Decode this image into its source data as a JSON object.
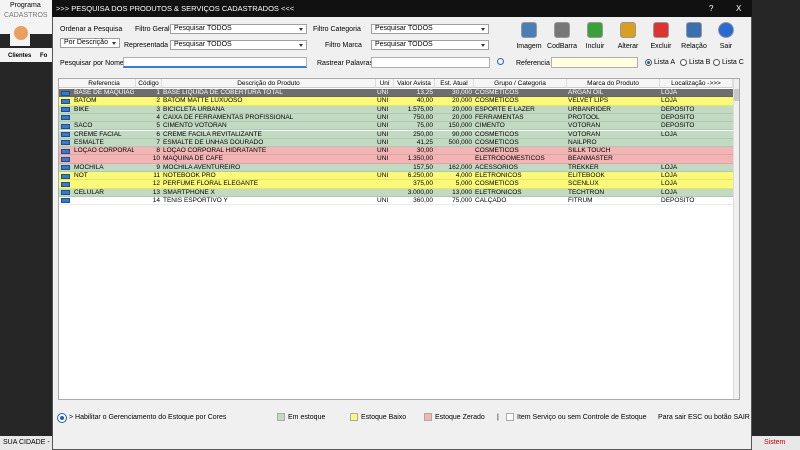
{
  "background": {
    "app_title": "Programa",
    "menu": "CADASTROS",
    "icons": [
      "Clientes",
      "Fo"
    ],
    "status": "SUA CIDADE -",
    "status_right": "Sistem"
  },
  "window": {
    "title": ">>>  PESQUISA DOS PRODUTOS & SERVIÇOS CADASTRADOS  <<<",
    "help": "?",
    "close": "X"
  },
  "filters": {
    "order_label": "Ordenar a Pesquisa",
    "order_value": "Por Descrição",
    "general_label": "Filtro Geral",
    "general_value": "Pesquisar TODOS",
    "rep_label": "Representada",
    "rep_value": "Pesquisar TODOS",
    "category_label": "Filtro Categoria",
    "category_value": "Pesquisar TODOS",
    "brand_label": "Filtro Marca",
    "brand_value": "Pesquisar TODOS"
  },
  "buttons": [
    "Imagem",
    "CodBarra",
    "Incluir",
    "Alterar",
    "Excluir",
    "Relação",
    "Sair"
  ],
  "search": {
    "name_label": "Pesquisar por Nome",
    "words_label": "Rastrear Palavras",
    "ref_label": "Referencia",
    "lists": [
      "Lista A",
      "Lista B",
      "Lista C"
    ]
  },
  "table": {
    "columns": [
      "Referencia",
      "Código",
      "Descrição do Produto",
      "Uni",
      "Valor Avista",
      "Est. Atual",
      "Grupo / Categoria",
      "Marca do Produto",
      "Localização ->>>"
    ],
    "rows": [
      {
        "cells": [
          "BASE DE MAQUIAGE",
          "1",
          "BASE LIQUIDA DE COBERTURA TOTAL",
          "UNI",
          "13,25",
          "30,000",
          "COSMETICOS",
          "ARGAN OIL",
          "LOJA"
        ],
        "color": "#6e6e6e",
        "selected": true
      },
      {
        "cells": [
          "BATOM",
          "2",
          "BATOM MATTE LUXUOSO",
          "UNI",
          "40,00",
          "20,000",
          "COSMETICOS",
          "VELVET LIPS",
          "LOJA"
        ],
        "color": "#fafa78"
      },
      {
        "cells": [
          "BIKE",
          "3",
          "BICICLETA URBANA",
          "UNI",
          "1.575,00",
          "20,000",
          "ESPORTE E LAZER",
          "URBANRIDER",
          "DEPOSITO"
        ],
        "color": "#c2dac2"
      },
      {
        "cells": [
          null,
          "4",
          "CAIXA DE FERRAMENTAS PROFISSIONAL",
          "UNI",
          "750,00",
          "20,000",
          "FERRAMENTAS",
          "PROTOOL",
          "DEPOSITO"
        ],
        "color": "#c2dac2"
      },
      {
        "cells": [
          "SACO",
          "5",
          "CIMENTO VOTORAN",
          "UNI",
          "75,00",
          "150,000",
          "CIMENTO",
          "VOTORAN",
          "DEPOSITO"
        ],
        "color": "#c2dac2"
      },
      {
        "cells": [
          "CREME FACIAL",
          "6",
          "CREME FACILA REVITALIZANTE",
          "UNI",
          "250,00",
          "90,000",
          "COSMETICOS",
          "VOTORAN",
          "LOJA"
        ],
        "color": "#c2dac2"
      },
      {
        "cells": [
          "ESMALTE",
          "7",
          "ESMALTE DE UNHAS DOURADO",
          "UNI",
          "41,25",
          "500,000",
          "COSMETICOS",
          "NAILPRO",
          null
        ],
        "color": "#c2dac2"
      },
      {
        "cells": [
          "LOÇÃO CORPORAL",
          "8",
          "LOÇÃO CORPORAL HIDRATANTE",
          "UNI",
          "30,00",
          null,
          "COSMETICOS",
          "SILLK TOUCH",
          null
        ],
        "color": "#f2b4b4"
      },
      {
        "cells": [
          null,
          "10",
          "MAQUINA DE CAFE",
          "UNI",
          "1.350,00",
          null,
          "ELETRODOMESTICOS",
          "BEANMASTER",
          null
        ],
        "color": "#f2b4b4"
      },
      {
        "cells": [
          "MOCHILA",
          "9",
          "MOCHILA AVENTUREIRO",
          null,
          "157,50",
          "162,000",
          "ACESSORIOS",
          "TREKKER",
          "LOJA"
        ],
        "color": "#c2dac2"
      },
      {
        "cells": [
          "NOT",
          "11",
          "NOTEBOOK PRO",
          "UNI",
          "6.250,00",
          "4,000",
          "ELETRONICOS",
          "ELITEBOOK",
          "LOJA"
        ],
        "color": "#fafa78"
      },
      {
        "cells": [
          null,
          "12",
          "PERFUME FLORAL ELEGANTE",
          null,
          "375,00",
          "5,000",
          "COSMETICOS",
          "SCENLUX",
          "LOJA"
        ],
        "color": "#fafa78"
      },
      {
        "cells": [
          "CELULAR",
          "13",
          "SMARTPHONE X",
          null,
          "3.000,00",
          "13,000",
          "ELETRONICOS",
          "TECHTRON",
          "LOJA"
        ],
        "color": "#c2dac2"
      },
      {
        "cells": [
          null,
          "14",
          "TENIS ESPORTIVO Y",
          "UNI",
          "360,00",
          "75,000",
          "CALÇADO",
          "FITRUM",
          "DEPOSITO"
        ],
        "color": "#ffffff"
      }
    ]
  },
  "legend": {
    "toggle": "> Habilitar o Gerenciamento do Estoque por Cores",
    "items": [
      {
        "label": "Em estoque",
        "color": "#c2dac2"
      },
      {
        "label": "Estoque Baixo",
        "color": "#fafa78"
      },
      {
        "label": "Estoque Zerado",
        "color": "#f2b4b4"
      },
      {
        "label": "Item Serviço ou sem Controle de Estoque",
        "color": "#ffffff"
      }
    ],
    "separator": "|",
    "exit_hint": "Para sair ESC ou botão SAIR"
  }
}
